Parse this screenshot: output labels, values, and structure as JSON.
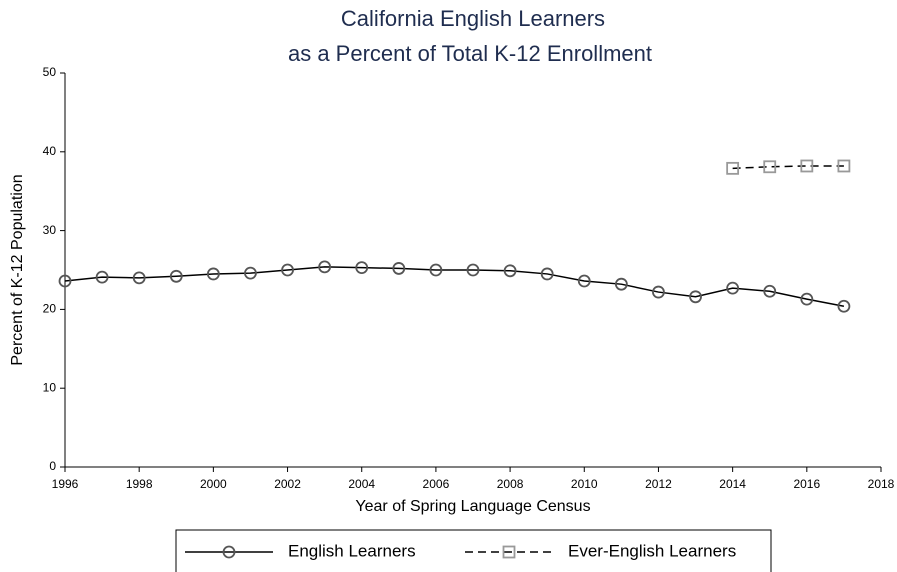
{
  "chart_data": {
    "type": "line",
    "title": [
      "California English Learners",
      "as a Percent of Total K-12 Enrollment"
    ],
    "xlabel": "Year of Spring Language Census",
    "ylabel": "Percent of K-12 Population",
    "x": [
      1996,
      1997,
      1998,
      1999,
      2000,
      2001,
      2002,
      2003,
      2004,
      2005,
      2006,
      2007,
      2008,
      2009,
      2010,
      2011,
      2012,
      2013,
      2014,
      2015,
      2016,
      2017
    ],
    "series": [
      {
        "name": "English Learners",
        "color": "#000000",
        "marker": "circle",
        "marker_color": "#555555",
        "dash": false,
        "values": [
          23.6,
          24.1,
          24.0,
          24.2,
          24.5,
          24.6,
          25.0,
          25.4,
          25.3,
          25.2,
          25.0,
          25.0,
          24.9,
          24.5,
          23.6,
          23.2,
          22.2,
          21.6,
          22.7,
          22.3,
          21.3,
          20.4
        ]
      },
      {
        "name": "Ever-English Learners",
        "color": "#000000",
        "marker": "square",
        "marker_color": "#999999",
        "dash": true,
        "values": [
          null,
          null,
          null,
          null,
          null,
          null,
          null,
          null,
          null,
          null,
          null,
          null,
          null,
          null,
          null,
          null,
          null,
          null,
          37.9,
          38.1,
          38.2,
          38.2
        ]
      }
    ],
    "xlim": [
      1996,
      2018
    ],
    "xticks": [
      1996,
      1998,
      2000,
      2002,
      2004,
      2006,
      2008,
      2010,
      2012,
      2014,
      2016,
      2018
    ],
    "ylim": [
      0,
      50
    ],
    "yticks": [
      0,
      10,
      20,
      30,
      40,
      50
    ],
    "grid": false,
    "legend": "bottom"
  }
}
